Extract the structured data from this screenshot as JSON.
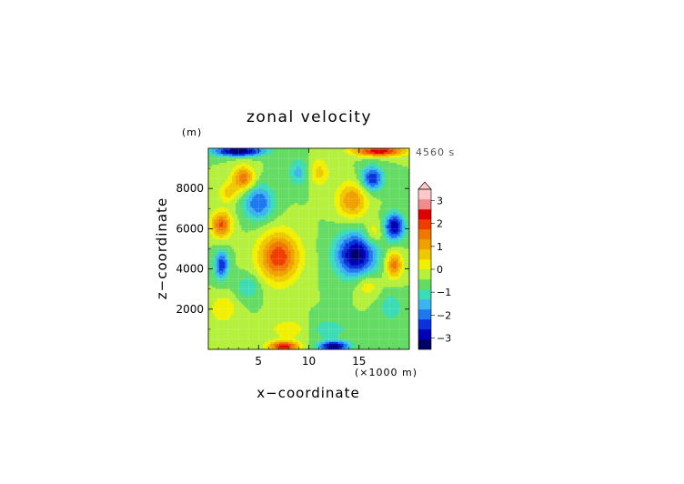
{
  "chart_data": {
    "type": "heatmap",
    "title": "zonal velocity",
    "xlabel": "x−coordinate",
    "ylabel": "z−coordinate",
    "yunit_label": "(m)",
    "xunit_label": "(×1000 m)",
    "time_label": "4560 s",
    "xlim": [
      0,
      20
    ],
    "ylim": [
      0,
      10000
    ],
    "xticks": [
      {
        "value": 5,
        "label": "5"
      },
      {
        "value": 10,
        "label": "10"
      },
      {
        "value": 15,
        "label": "15"
      }
    ],
    "yticks": [
      {
        "value": 2000,
        "label": "2000"
      },
      {
        "value": 4000,
        "label": "4000"
      },
      {
        "value": 6000,
        "label": "6000"
      },
      {
        "value": 8000,
        "label": "8000"
      }
    ],
    "colorbar": {
      "min": -3.5,
      "max": 3.5,
      "step": 0.5,
      "extend": "max",
      "ticks": [
        {
          "value": 3,
          "label": "3"
        },
        {
          "value": 2,
          "label": "2"
        },
        {
          "value": 1,
          "label": "1"
        },
        {
          "value": 0,
          "label": "0"
        },
        {
          "value": -1,
          "label": "−1"
        },
        {
          "value": -2,
          "label": "−2"
        },
        {
          "value": -3,
          "label": "−3"
        }
      ],
      "colors": [
        "#000066",
        "#0000b4",
        "#0a32dc",
        "#1e78f0",
        "#3cb4f0",
        "#3cdcb4",
        "#64dc64",
        "#b4f03c",
        "#f0f000",
        "#f0c800",
        "#f0a000",
        "#f07800",
        "#f03c00",
        "#dc0000",
        "#f08c8c",
        "#ffc8c8"
      ]
    },
    "features": [
      {
        "x": 7.0,
        "z": 4600,
        "value": 2.9,
        "sx": 2.0,
        "sz": 1200
      },
      {
        "x": 14.7,
        "z": 4700,
        "value": -3.2,
        "sx": 2.0,
        "sz": 1100
      },
      {
        "x": 1.3,
        "z": 6200,
        "value": 2.6,
        "sx": 1.0,
        "sz": 650
      },
      {
        "x": 18.5,
        "z": 6100,
        "value": -3.0,
        "sx": 1.0,
        "sz": 650
      },
      {
        "x": 1.3,
        "z": 4200,
        "value": -2.4,
        "sx": 0.7,
        "sz": 700
      },
      {
        "x": 18.5,
        "z": 4200,
        "value": 2.3,
        "sx": 0.8,
        "sz": 650
      },
      {
        "x": 3.5,
        "z": 8500,
        "value": 2.4,
        "sx": 1.1,
        "sz": 600
      },
      {
        "x": 16.3,
        "z": 8500,
        "value": -2.5,
        "sx": 1.1,
        "sz": 600
      },
      {
        "x": 5.0,
        "z": 7300,
        "value": -2.0,
        "sx": 1.5,
        "sz": 900
      },
      {
        "x": 14.3,
        "z": 7400,
        "value": 2.0,
        "sx": 1.5,
        "sz": 900
      },
      {
        "x": 9.0,
        "z": 8800,
        "value": -1.2,
        "sx": 1.0,
        "sz": 700
      },
      {
        "x": 11.0,
        "z": 8800,
        "value": 1.2,
        "sx": 1.0,
        "sz": 700
      },
      {
        "x": 1.5,
        "z": 2000,
        "value": 1.0,
        "sx": 1.3,
        "sz": 700
      },
      {
        "x": 18.2,
        "z": 2100,
        "value": -0.9,
        "sx": 1.2,
        "sz": 700
      },
      {
        "x": 4.0,
        "z": 3100,
        "value": -1.0,
        "sx": 1.2,
        "sz": 600
      },
      {
        "x": 15.8,
        "z": 3200,
        "value": 1.0,
        "sx": 1.2,
        "sz": 600
      },
      {
        "x": 16.5,
        "z": 5800,
        "value": 1.1,
        "sx": 1.0,
        "sz": 600
      },
      {
        "x": 2.0,
        "z": 7800,
        "value": 1.2,
        "sx": 1.0,
        "sz": 500
      },
      {
        "x": 8.0,
        "z": 1000,
        "value": 0.9,
        "sx": 1.8,
        "sz": 500
      },
      {
        "x": 12.0,
        "z": 1000,
        "value": -0.9,
        "sx": 1.8,
        "sz": 500
      },
      {
        "x": 7.5,
        "z": 150,
        "value": 3.2,
        "sx": 1.5,
        "sz": 250
      },
      {
        "x": 12.5,
        "z": 150,
        "value": -3.2,
        "sx": 1.5,
        "sz": 250
      },
      {
        "x": 3.0,
        "z": 9850,
        "value": -3.4,
        "sx": 2.5,
        "sz": 250
      },
      {
        "x": 17.0,
        "z": 9850,
        "value": 3.4,
        "sx": 2.5,
        "sz": 250
      }
    ]
  }
}
